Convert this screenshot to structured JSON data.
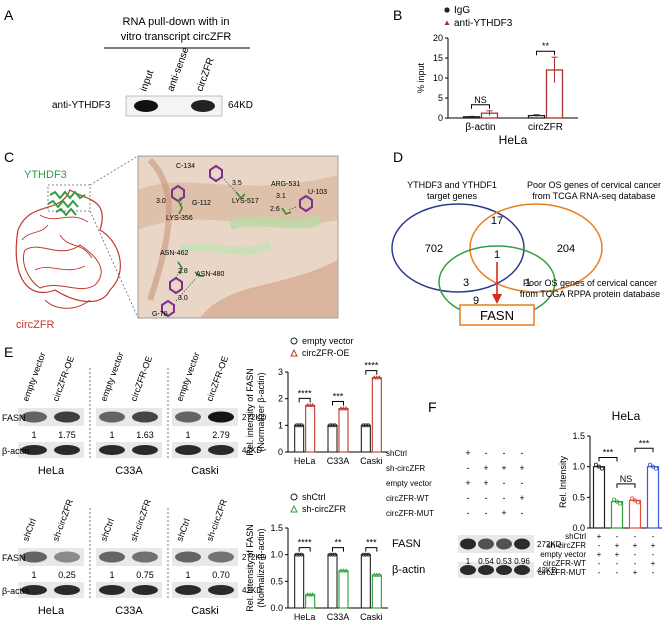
{
  "panels": {
    "A": {
      "letter": "A",
      "title_line1": "RNA pull-down with in",
      "title_line2": "vitro transcript circZFR",
      "lanes": [
        "input",
        "anti-sense",
        "circZFR"
      ],
      "row_label": "anti-YTHDF3",
      "size_label": "64KD"
    },
    "B": {
      "letter": "B",
      "legend": [
        "IgG",
        "anti-YTHDF3"
      ],
      "ylabel": "% input",
      "cell": "HeLa",
      "sig": [
        "NS",
        "**"
      ]
    },
    "C": {
      "letter": "C",
      "protein_label": "YTHDF3",
      "rna_label": "circZFR",
      "residues": [
        "C-134",
        "3.0",
        "G-112",
        "LYS-356",
        "3.5",
        "LYS-517",
        "ARG-531",
        "U-103",
        "3.1",
        "2.6",
        "ASN-462",
        "2.8",
        "ASN-480",
        "3.0",
        "G-70"
      ]
    },
    "D": {
      "letter": "D",
      "set1_label_l1": "YTHDF3 and YTHDF1",
      "set1_label_l2": "target genes",
      "set2_label_l1": "Poor OS genes of cervical cancer",
      "set2_label_l2": "from TCGA RNA-seq database",
      "set3_label_l1": "Poor OS genes of cervical cancer",
      "set3_label_l2": "from TCGA RPPA protein database",
      "counts": {
        "a": "702",
        "ab": "17",
        "b": "204",
        "abc": "1",
        "ac": "3",
        "bc": "1",
        "c": "9"
      },
      "result": "FASN"
    },
    "E": {
      "letter": "E",
      "top": {
        "lanes": [
          "empty vector",
          "circZFR-OE"
        ],
        "rows": [
          "FASN",
          "β-actin"
        ],
        "sizes": [
          "272KD",
          "42KD"
        ],
        "quant": [
          [
            "1",
            "1.75"
          ],
          [
            "1",
            "1.63"
          ],
          [
            "1",
            "2.79"
          ]
        ],
        "cells": [
          "HeLa",
          "C33A",
          "Caski"
        ]
      },
      "bottom": {
        "lanes": [
          "shCtrl",
          "sh-circZFR"
        ],
        "rows": [
          "FASN",
          "β-actin"
        ],
        "sizes": [
          "272KD",
          "42KD"
        ],
        "quant": [
          [
            "1",
            "0.25"
          ],
          [
            "1",
            "0.75"
          ],
          [
            "1",
            "0.70"
          ]
        ],
        "cells": [
          "HeLa",
          "C33A",
          "Caski"
        ]
      }
    },
    "F": {
      "letter": "F",
      "conditions": [
        "shCtrl",
        "sh-circZFR",
        "empty vector",
        "circZFR-WT",
        "circZFR-MUT"
      ],
      "signs": [
        [
          "+",
          "-",
          "-",
          "-"
        ],
        [
          "-",
          "+",
          "+",
          "+"
        ],
        [
          "+",
          "+",
          "-",
          "-"
        ],
        [
          "-",
          "-",
          "-",
          "+"
        ],
        [
          "-",
          "-",
          "+",
          "-"
        ]
      ],
      "rows": [
        "FASN",
        "β-actin"
      ],
      "sizes": [
        "272KD",
        "42KD"
      ],
      "quant": [
        "1",
        "0.54",
        "0.53",
        "0.96"
      ]
    }
  },
  "chart_data": [
    {
      "id": "B",
      "type": "bar",
      "title": "",
      "xlabel": "HeLa",
      "ylabel": "% input",
      "categories": [
        "β-actin",
        "circZFR"
      ],
      "series": [
        {
          "name": "IgG",
          "values": [
            0.3,
            0.6
          ],
          "error": [
            0.1,
            0.2
          ],
          "color": "#222222"
        },
        {
          "name": "anti-YTHDF3",
          "values": [
            1.2,
            12.0
          ],
          "error": [
            0.6,
            3.2
          ],
          "color": "#a8322d"
        }
      ],
      "ylim": [
        0,
        20
      ],
      "yticks": [
        0,
        5,
        10,
        15,
        20
      ],
      "significance": [
        "NS",
        "**"
      ]
    },
    {
      "id": "E-top",
      "type": "bar",
      "title": "",
      "xlabel": "",
      "ylabel_l1": "Rel. intensity of FASN",
      "ylabel_l2": "(Normalizer β-actin)",
      "categories": [
        "HeLa",
        "C33A",
        "Caski"
      ],
      "series": [
        {
          "name": "empty vector",
          "values": [
            1.0,
            1.0,
            1.0
          ],
          "color": "#222222"
        },
        {
          "name": "circZFR-OE",
          "values": [
            1.75,
            1.63,
            2.79
          ],
          "color": "#c0392b"
        }
      ],
      "ylim": [
        0,
        3
      ],
      "yticks": [
        0,
        1,
        2,
        3
      ],
      "significance": [
        "****",
        "***",
        "****"
      ]
    },
    {
      "id": "E-bottom",
      "type": "bar",
      "title": "",
      "xlabel": "",
      "ylabel_l1": "Rel. intensity of FASN",
      "ylabel_l2": "(Normalizer β-actin)",
      "categories": [
        "HeLa",
        "C33A",
        "Caski"
      ],
      "series": [
        {
          "name": "shCtrl",
          "values": [
            1.0,
            1.0,
            1.0
          ],
          "color": "#222222"
        },
        {
          "name": "sh-circZFR",
          "values": [
            0.25,
            0.7,
            0.62
          ],
          "color": "#2e9e3e"
        }
      ],
      "ylim": [
        0,
        1.5
      ],
      "yticks": [
        0.0,
        0.5,
        1.0,
        1.5
      ],
      "significance": [
        "****",
        "**",
        "***"
      ]
    },
    {
      "id": "F",
      "type": "bar",
      "title": "HeLa",
      "xlabel": "",
      "ylabel": "Rel. Intensity",
      "categories": [
        "1",
        "2",
        "3",
        "4"
      ],
      "series": [
        {
          "name": "Rel. Intensity",
          "values": [
            1.0,
            0.43,
            0.45,
            1.0
          ],
          "colors": [
            "#222222",
            "#2e9e3e",
            "#e74c3c",
            "#3b5bd6"
          ]
        }
      ],
      "ylim": [
        0,
        1.5
      ],
      "yticks": [
        0.0,
        0.5,
        1.0,
        1.5
      ],
      "significance": [
        "***",
        "NS",
        "***"
      ]
    }
  ]
}
